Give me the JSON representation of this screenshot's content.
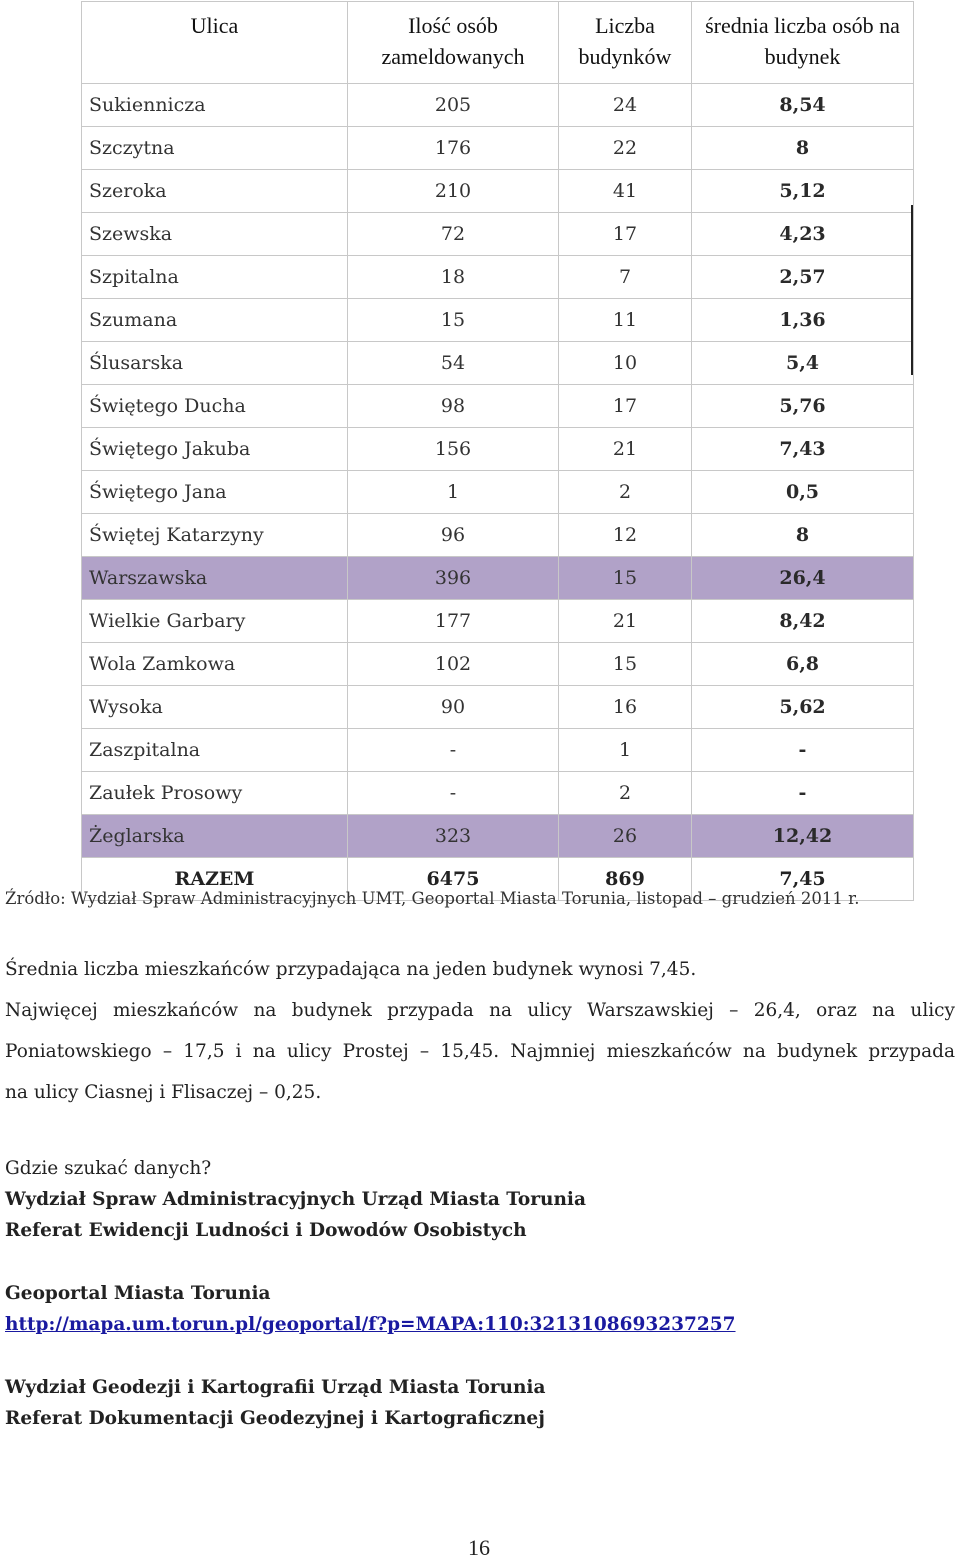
{
  "table": {
    "headers": {
      "street": "Ulica",
      "people": "Ilość osób zameldowanych",
      "buildings": "Liczba budynków",
      "average": "średnia liczba osób na budynek"
    },
    "rows": [
      {
        "street": "Sukiennicza",
        "people": "205",
        "buildings": "24",
        "average": "8,54",
        "highlight": false
      },
      {
        "street": "Szczytna",
        "people": "176",
        "buildings": "22",
        "average": "8",
        "highlight": false
      },
      {
        "street": "Szeroka",
        "people": "210",
        "buildings": "41",
        "average": "5,12",
        "highlight": false
      },
      {
        "street": "Szewska",
        "people": "72",
        "buildings": "17",
        "average": "4,23",
        "highlight": false
      },
      {
        "street": "Szpitalna",
        "people": "18",
        "buildings": "7",
        "average": "2,57",
        "highlight": false
      },
      {
        "street": "Szumana",
        "people": "15",
        "buildings": "11",
        "average": "1,36",
        "highlight": false
      },
      {
        "street": "Ślusarska",
        "people": "54",
        "buildings": "10",
        "average": "5,4",
        "highlight": false
      },
      {
        "street": "Świętego Ducha",
        "people": "98",
        "buildings": "17",
        "average": "5,76",
        "highlight": false
      },
      {
        "street": "Świętego Jakuba",
        "people": "156",
        "buildings": "21",
        "average": "7,43",
        "highlight": false
      },
      {
        "street": "Świętego Jana",
        "people": "1",
        "buildings": "2",
        "average": "0,5",
        "highlight": false
      },
      {
        "street": "Świętej Katarzyny",
        "people": "96",
        "buildings": "12",
        "average": "8",
        "highlight": false
      },
      {
        "street": "Warszawska",
        "people": "396",
        "buildings": "15",
        "average": "26,4",
        "highlight": true
      },
      {
        "street": "Wielkie Garbary",
        "people": "177",
        "buildings": "21",
        "average": "8,42",
        "highlight": false
      },
      {
        "street": "Wola Zamkowa",
        "people": "102",
        "buildings": "15",
        "average": "6,8",
        "highlight": false
      },
      {
        "street": "Wysoka",
        "people": "90",
        "buildings": "16",
        "average": "5,62",
        "highlight": false
      },
      {
        "street": "Zaszpitalna",
        "people": "-",
        "buildings": "1",
        "average": "-",
        "highlight": false
      },
      {
        "street": "Zaułek Prosowy",
        "people": "-",
        "buildings": "2",
        "average": "-",
        "highlight": false
      },
      {
        "street": "Żeglarska",
        "people": "323",
        "buildings": "26",
        "average": "12,42",
        "highlight": true
      }
    ],
    "total": {
      "label": "RAZEM",
      "people": "6475",
      "buildings": "869",
      "average": "7,45"
    },
    "highlight_color": "#b1a2c8"
  },
  "source": "Źródło: Wydział Spraw Administracyjnych UMT, Geoportal Miasta Torunia, listopad – grudzień 2011 r.",
  "paragraph": {
    "line1": "Średnia liczba mieszkańców przypadająca na jeden budynek wynosi 7,45.",
    "line2": "Najwięcej mieszkańców na budynek przypada na ulicy Warszawskiej – 26,4, oraz na ulicy",
    "line3": "Poniatowskiego – 17,5 i na ulicy Prostej – 15,45. Najmniej mieszkańców na budynek przypada",
    "line4": "na ulicy Ciasnej i Flisaczej – 0,25."
  },
  "where": {
    "heading": "Gdzie szukać danych?",
    "office1": "Wydział Spraw Administracyjnych Urząd Miasta Torunia",
    "office1_sub": "Referat Ewidencji Ludności i Dowodów Osobistych",
    "geoportal": "Geoportal Miasta Torunia",
    "link": "http://mapa.um.torun.pl/geoportal/f?p=MAPA:110:3213108693237257",
    "office2": "Wydział Geodezji i Kartografii Urząd Miasta Torunia",
    "office2_sub": "Referat Dokumentacji Geodezyjnej i Kartograficznej"
  },
  "page_number": "16"
}
